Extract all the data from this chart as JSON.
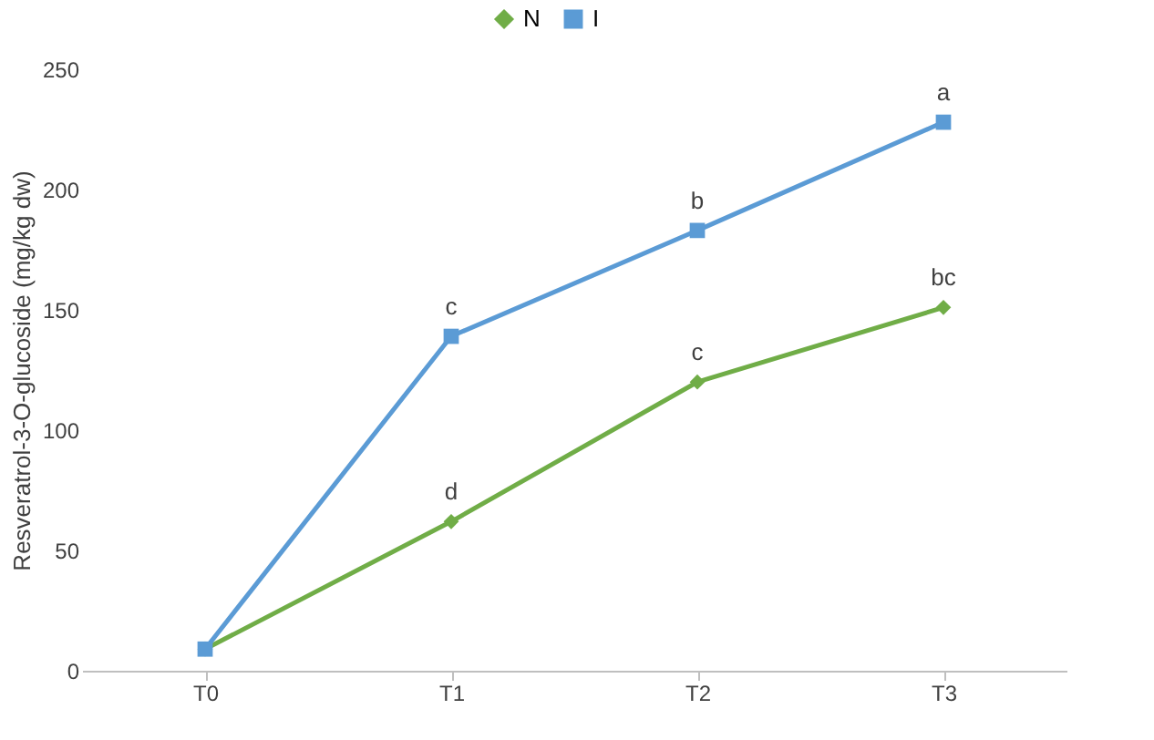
{
  "chart_data": {
    "type": "line",
    "ylabel": "Resveratrol-3-O-glucoside (mg/kg dw)",
    "categories": [
      "T0",
      "T1",
      "T2",
      "T3"
    ],
    "series": [
      {
        "name": "N",
        "color": "#70ad47",
        "marker": "diamond",
        "values": [
          9,
          62,
          120,
          151
        ]
      },
      {
        "name": "I",
        "color": "#5b9bd5",
        "marker": "square",
        "values": [
          9,
          139,
          183,
          228
        ]
      }
    ],
    "annotations": [
      {
        "text": "d",
        "x": "T1",
        "y": 62
      },
      {
        "text": "c",
        "x": "T2",
        "y": 120
      },
      {
        "text": "bc",
        "x": "T3",
        "y": 151
      },
      {
        "text": "c",
        "x": "T1",
        "y": 139
      },
      {
        "text": "b",
        "x": "T2",
        "y": 183
      },
      {
        "text": "a",
        "x": "T3",
        "y": 228
      }
    ],
    "ylim": [
      0,
      250
    ],
    "yticks": [
      0,
      50,
      100,
      150,
      200,
      250
    ],
    "grid": false,
    "legend": "top",
    "line_style": "solid"
  }
}
